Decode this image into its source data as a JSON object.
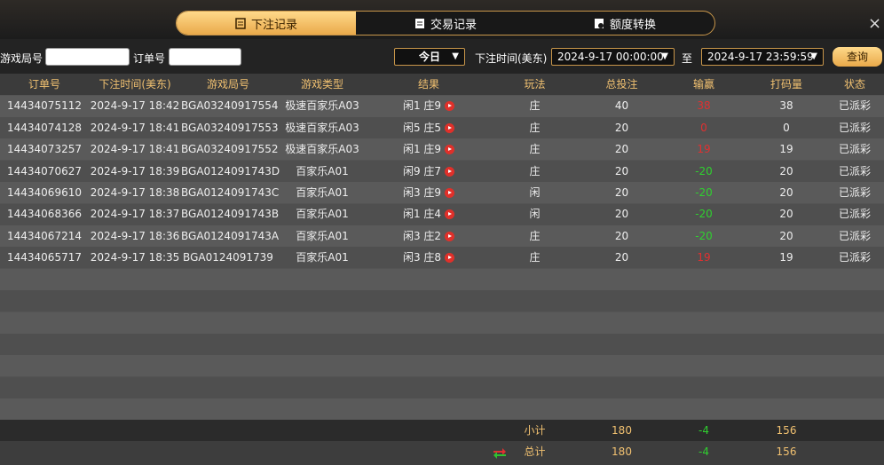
{
  "tabs": [
    "下注记录",
    "交易记录",
    "额度转换"
  ],
  "close": "×",
  "filters": {
    "game_id_label": "游戏局号",
    "order_label": "订单号",
    "period": "今日",
    "time_label": "下注时间(美东)",
    "start": "2024-9-17 00:00:00",
    "to": "至",
    "end": "2024-9-17 23:59:59",
    "query": "查询"
  },
  "table": {
    "headers": [
      "订单号",
      "下注时间(美东)",
      "游戏局号",
      "游戏类型",
      "结果",
      "玩法",
      "总投注",
      "输赢",
      "打码量",
      "状态"
    ],
    "rows": [
      [
        "14434075112",
        "2024-9-17 18:42",
        "BGA03240917554",
        "极速百家乐A03",
        "闲1 庄9",
        "庄",
        40,
        38,
        38,
        "已派彩"
      ],
      [
        "14434074128",
        "2024-9-17 18:41",
        "BGA03240917553",
        "极速百家乐A03",
        "闲5 庄5",
        "庄",
        20,
        0,
        0,
        "已派彩"
      ],
      [
        "14434073257",
        "2024-9-17 18:41",
        "BGA03240917552",
        "极速百家乐A03",
        "闲1 庄9",
        "庄",
        20,
        19,
        19,
        "已派彩"
      ],
      [
        "14434070627",
        "2024-9-17 18:39",
        "BGA0124091743D",
        "百家乐A01",
        "闲9 庄7",
        "庄",
        20,
        -20,
        20,
        "已派彩"
      ],
      [
        "14434069610",
        "2024-9-17 18:38",
        "BGA0124091743C",
        "百家乐A01",
        "闲3 庄9",
        "闲",
        20,
        -20,
        20,
        "已派彩"
      ],
      [
        "14434068366",
        "2024-9-17 18:37",
        "BGA0124091743B",
        "百家乐A01",
        "闲1 庄4",
        "闲",
        20,
        -20,
        20,
        "已派彩"
      ],
      [
        "14434067214",
        "2024-9-17 18:36",
        "BGA0124091743A",
        "百家乐A01",
        "闲3 庄2",
        "庄",
        20,
        -20,
        20,
        "已派彩"
      ],
      [
        "14434065717",
        "2024-9-17 18:35",
        "BGA0124091739",
        "百家乐A01",
        "闲3 庄8",
        "庄",
        20,
        19,
        19,
        "已派彩"
      ]
    ]
  },
  "summary": [
    {
      "label": "小计",
      "total_bet": 180,
      "win_loss": -4,
      "turnover": 156
    },
    {
      "label": "总计",
      "total_bet": 180,
      "win_loss": -4,
      "turnover": 156
    }
  ]
}
